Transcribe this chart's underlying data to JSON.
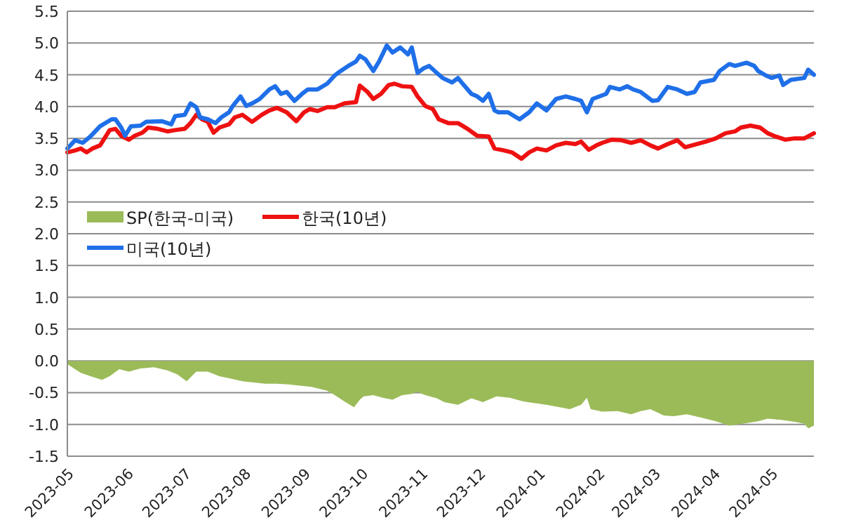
{
  "chart_data": {
    "type": "line",
    "xlim": [
      "2023-05-01",
      "2024-05-23"
    ],
    "xticks": [
      "2023-05",
      "2023-06",
      "2023-07",
      "2023-08",
      "2023-09",
      "2023-10",
      "2023-11",
      "2023-12",
      "2024-01",
      "2024-02",
      "2024-03",
      "2024-04",
      "2024-05"
    ],
    "ylim": [
      -1.5,
      5.5
    ],
    "yticks": [
      {
        "value": -1.5,
        "label": "-1.5"
      },
      {
        "value": -1,
        "label": "-1.0"
      },
      {
        "value": -0.5,
        "label": "-0.5"
      },
      {
        "value": 0,
        "label": "0.0"
      },
      {
        "value": 0.5,
        "label": "0.5"
      },
      {
        "value": 1,
        "label": "1.0"
      },
      {
        "value": 1.5,
        "label": "1.5"
      },
      {
        "value": 2,
        "label": "2.0"
      },
      {
        "value": 2.5,
        "label": "2.5"
      },
      {
        "value": 3,
        "label": "3.0"
      },
      {
        "value": 3.5,
        "label": "3.5"
      },
      {
        "value": 4,
        "label": "4.0"
      },
      {
        "value": 4.5,
        "label": "4.5"
      },
      {
        "value": 5,
        "label": "5.0"
      },
      {
        "value": 5.5,
        "label": "5.5"
      }
    ],
    "grid": "y",
    "legend": "left",
    "marker": "none",
    "line_style": "solid",
    "series": [
      {
        "name": "SP(한국-미국)",
        "type": "area",
        "color": "#9bbb59",
        "x": [
          "2023-05-01",
          "2023-05-05",
          "2023-05-08",
          "2023-05-13",
          "2023-05-19",
          "2023-05-23",
          "2023-05-28",
          "2023-06-02",
          "2023-06-08",
          "2023-06-15",
          "2023-06-22",
          "2023-06-27",
          "2023-07-02",
          "2023-07-07",
          "2023-07-13",
          "2023-07-19",
          "2023-07-25",
          "2023-07-31",
          "2023-08-06",
          "2023-08-12",
          "2023-08-18",
          "2023-08-24",
          "2023-08-30",
          "2023-09-05",
          "2023-09-13",
          "2023-09-17",
          "2023-09-22",
          "2023-09-27",
          "2023-09-30",
          "2023-10-02",
          "2023-10-07",
          "2023-10-12",
          "2023-10-17",
          "2023-10-22",
          "2023-10-27",
          "2023-10-30",
          "2023-11-03",
          "2023-11-09",
          "2023-11-13",
          "2023-11-20",
          "2023-11-27",
          "2023-12-03",
          "2023-12-10",
          "2023-12-17",
          "2023-12-24",
          "2023-12-31",
          "2024-01-05",
          "2024-01-12",
          "2024-01-17",
          "2024-01-23",
          "2024-01-26",
          "2024-01-28",
          "2024-02-03",
          "2024-02-11",
          "2024-02-18",
          "2024-02-23",
          "2024-02-28",
          "2024-03-06",
          "2024-03-11",
          "2024-03-18",
          "2024-03-25",
          "2024-04-02",
          "2024-04-09",
          "2024-04-16",
          "2024-04-24",
          "2024-04-29",
          "2024-05-06",
          "2024-05-13",
          "2024-05-18",
          "2024-05-20",
          "2024-05-23"
        ],
        "values": [
          -0.05,
          -0.13,
          -0.19,
          -0.24,
          -0.3,
          -0.24,
          -0.13,
          -0.17,
          -0.12,
          -0.1,
          -0.15,
          -0.21,
          -0.32,
          -0.17,
          -0.17,
          -0.24,
          -0.28,
          -0.32,
          -0.34,
          -0.36,
          -0.36,
          -0.37,
          -0.39,
          -0.41,
          -0.47,
          -0.54,
          -0.64,
          -0.73,
          -0.61,
          -0.56,
          -0.54,
          -0.58,
          -0.61,
          -0.54,
          -0.52,
          -0.49,
          -0.54,
          -0.59,
          -0.65,
          -0.69,
          -0.59,
          -0.65,
          -0.56,
          -0.58,
          -0.64,
          -0.67,
          -0.69,
          -0.73,
          -0.76,
          -0.69,
          -0.58,
          -0.76,
          -0.8,
          -0.79,
          -0.84,
          -0.79,
          -0.76,
          -0.86,
          -0.87,
          -0.84,
          -0.89,
          -0.95,
          -1.02,
          -0.99,
          -0.95,
          -0.91,
          -0.93,
          -0.96,
          -0.99,
          -1.06,
          -1.02
        ]
      },
      {
        "name": "한국(10년)",
        "color": "#ee1111",
        "x": [
          "2023-05-01",
          "2023-05-05",
          "2023-05-08",
          "2023-05-11",
          "2023-05-14",
          "2023-05-18",
          "2023-05-23",
          "2023-05-26",
          "2023-05-29",
          "2023-06-02",
          "2023-06-05",
          "2023-06-09",
          "2023-06-12",
          "2023-06-17",
          "2023-06-22",
          "2023-06-26",
          "2023-07-01",
          "2023-07-04",
          "2023-07-07",
          "2023-07-10",
          "2023-07-13",
          "2023-07-16",
          "2023-07-19",
          "2023-07-24",
          "2023-07-27",
          "2023-07-31",
          "2023-08-05",
          "2023-08-10",
          "2023-08-14",
          "2023-08-18",
          "2023-08-23",
          "2023-08-28",
          "2023-09-01",
          "2023-09-04",
          "2023-09-08",
          "2023-09-13",
          "2023-09-17",
          "2023-09-22",
          "2023-09-28",
          "2023-09-30",
          "2023-10-04",
          "2023-10-07",
          "2023-10-11",
          "2023-10-15",
          "2023-10-18",
          "2023-10-22",
          "2023-10-27",
          "2023-10-30",
          "2023-11-03",
          "2023-11-07",
          "2023-11-10",
          "2023-11-15",
          "2023-11-20",
          "2023-11-25",
          "2023-11-30",
          "2023-12-06",
          "2023-12-09",
          "2023-12-14",
          "2023-12-18",
          "2023-12-23",
          "2023-12-27",
          "2023-12-31",
          "2024-01-05",
          "2024-01-10",
          "2024-01-15",
          "2024-01-20",
          "2024-01-23",
          "2024-01-27",
          "2024-01-31",
          "2024-02-03",
          "2024-02-08",
          "2024-02-13",
          "2024-02-18",
          "2024-02-23",
          "2024-02-28",
          "2024-03-03",
          "2024-03-08",
          "2024-03-13",
          "2024-03-17",
          "2024-03-23",
          "2024-03-28",
          "2024-04-02",
          "2024-04-07",
          "2024-04-12",
          "2024-04-15",
          "2024-04-20",
          "2024-04-25",
          "2024-04-29",
          "2024-05-03",
          "2024-05-08",
          "2024-05-13",
          "2024-05-18",
          "2024-05-23"
        ],
        "values": [
          3.28,
          3.31,
          3.34,
          3.28,
          3.34,
          3.39,
          3.63,
          3.65,
          3.54,
          3.48,
          3.54,
          3.59,
          3.67,
          3.65,
          3.61,
          3.63,
          3.65,
          3.74,
          3.87,
          3.8,
          3.76,
          3.59,
          3.67,
          3.72,
          3.83,
          3.87,
          3.76,
          3.87,
          3.94,
          3.98,
          3.91,
          3.77,
          3.91,
          3.96,
          3.93,
          3.99,
          3.99,
          4.05,
          4.07,
          4.33,
          4.23,
          4.12,
          4.2,
          4.34,
          4.36,
          4.32,
          4.31,
          4.16,
          4.01,
          3.96,
          3.8,
          3.74,
          3.74,
          3.65,
          3.54,
          3.53,
          3.34,
          3.31,
          3.28,
          3.18,
          3.28,
          3.34,
          3.31,
          3.39,
          3.43,
          3.41,
          3.45,
          3.32,
          3.39,
          3.43,
          3.48,
          3.47,
          3.43,
          3.47,
          3.39,
          3.34,
          3.41,
          3.47,
          3.36,
          3.41,
          3.45,
          3.5,
          3.58,
          3.61,
          3.67,
          3.7,
          3.67,
          3.58,
          3.53,
          3.48,
          3.5,
          3.5,
          3.58
        ]
      },
      {
        "name": "미국(10년)",
        "color": "#1f6fe8",
        "x": [
          "2023-05-01",
          "2023-05-05",
          "2023-05-09",
          "2023-05-13",
          "2023-05-18",
          "2023-05-24",
          "2023-05-26",
          "2023-05-29",
          "2023-05-31",
          "2023-06-03",
          "2023-06-08",
          "2023-06-11",
          "2023-06-19",
          "2023-06-24",
          "2023-06-26",
          "2023-07-01",
          "2023-07-04",
          "2023-07-07",
          "2023-07-09",
          "2023-07-13",
          "2023-07-17",
          "2023-07-20",
          "2023-07-24",
          "2023-07-26",
          "2023-07-30",
          "2023-08-02",
          "2023-08-05",
          "2023-08-09",
          "2023-08-14",
          "2023-08-17",
          "2023-08-20",
          "2023-08-23",
          "2023-08-27",
          "2023-08-31",
          "2023-09-03",
          "2023-09-08",
          "2023-09-13",
          "2023-09-17",
          "2023-09-20",
          "2023-09-24",
          "2023-09-28",
          "2023-09-30",
          "2023-10-03",
          "2023-10-07",
          "2023-10-10",
          "2023-10-14",
          "2023-10-17",
          "2023-10-21",
          "2023-10-25",
          "2023-10-27",
          "2023-10-30",
          "2023-11-02",
          "2023-11-05",
          "2023-11-09",
          "2023-11-12",
          "2023-11-17",
          "2023-11-20",
          "2023-11-23",
          "2023-11-27",
          "2023-11-30",
          "2023-12-03",
          "2023-12-06",
          "2023-12-09",
          "2023-12-11",
          "2023-12-16",
          "2023-12-22",
          "2023-12-27",
          "2023-12-31",
          "2024-01-05",
          "2024-01-10",
          "2024-01-15",
          "2024-01-20",
          "2024-01-23",
          "2024-01-26",
          "2024-01-29",
          "2024-02-05",
          "2024-02-07",
          "2024-02-12",
          "2024-02-16",
          "2024-02-19",
          "2024-02-23",
          "2024-02-29",
          "2024-03-03",
          "2024-03-08",
          "2024-03-13",
          "2024-03-18",
          "2024-03-22",
          "2024-03-25",
          "2024-04-01",
          "2024-04-04",
          "2024-04-09",
          "2024-04-12",
          "2024-04-18",
          "2024-04-22",
          "2024-04-24",
          "2024-04-28",
          "2024-05-01",
          "2024-05-05",
          "2024-05-07",
          "2024-05-11",
          "2024-05-18",
          "2024-05-20",
          "2024-05-23"
        ],
        "values": [
          3.34,
          3.47,
          3.43,
          3.53,
          3.69,
          3.8,
          3.8,
          3.67,
          3.54,
          3.69,
          3.7,
          3.76,
          3.77,
          3.72,
          3.85,
          3.87,
          4.05,
          3.99,
          3.83,
          3.8,
          3.74,
          3.83,
          3.91,
          4.01,
          4.16,
          4.01,
          4.05,
          4.12,
          4.27,
          4.32,
          4.2,
          4.23,
          4.09,
          4.2,
          4.27,
          4.27,
          4.36,
          4.49,
          4.56,
          4.64,
          4.71,
          4.8,
          4.74,
          4.56,
          4.71,
          4.96,
          4.85,
          4.93,
          4.82,
          4.93,
          4.53,
          4.6,
          4.64,
          4.53,
          4.45,
          4.38,
          4.45,
          4.34,
          4.2,
          4.16,
          4.09,
          4.2,
          3.94,
          3.91,
          3.91,
          3.8,
          3.91,
          4.05,
          3.94,
          4.12,
          4.16,
          4.12,
          4.09,
          3.91,
          4.12,
          4.2,
          4.31,
          4.27,
          4.32,
          4.27,
          4.23,
          4.09,
          4.1,
          4.31,
          4.27,
          4.2,
          4.23,
          4.38,
          4.42,
          4.56,
          4.67,
          4.64,
          4.69,
          4.64,
          4.56,
          4.49,
          4.45,
          4.49,
          4.34,
          4.42,
          4.45,
          4.58,
          4.5
        ]
      }
    ]
  }
}
